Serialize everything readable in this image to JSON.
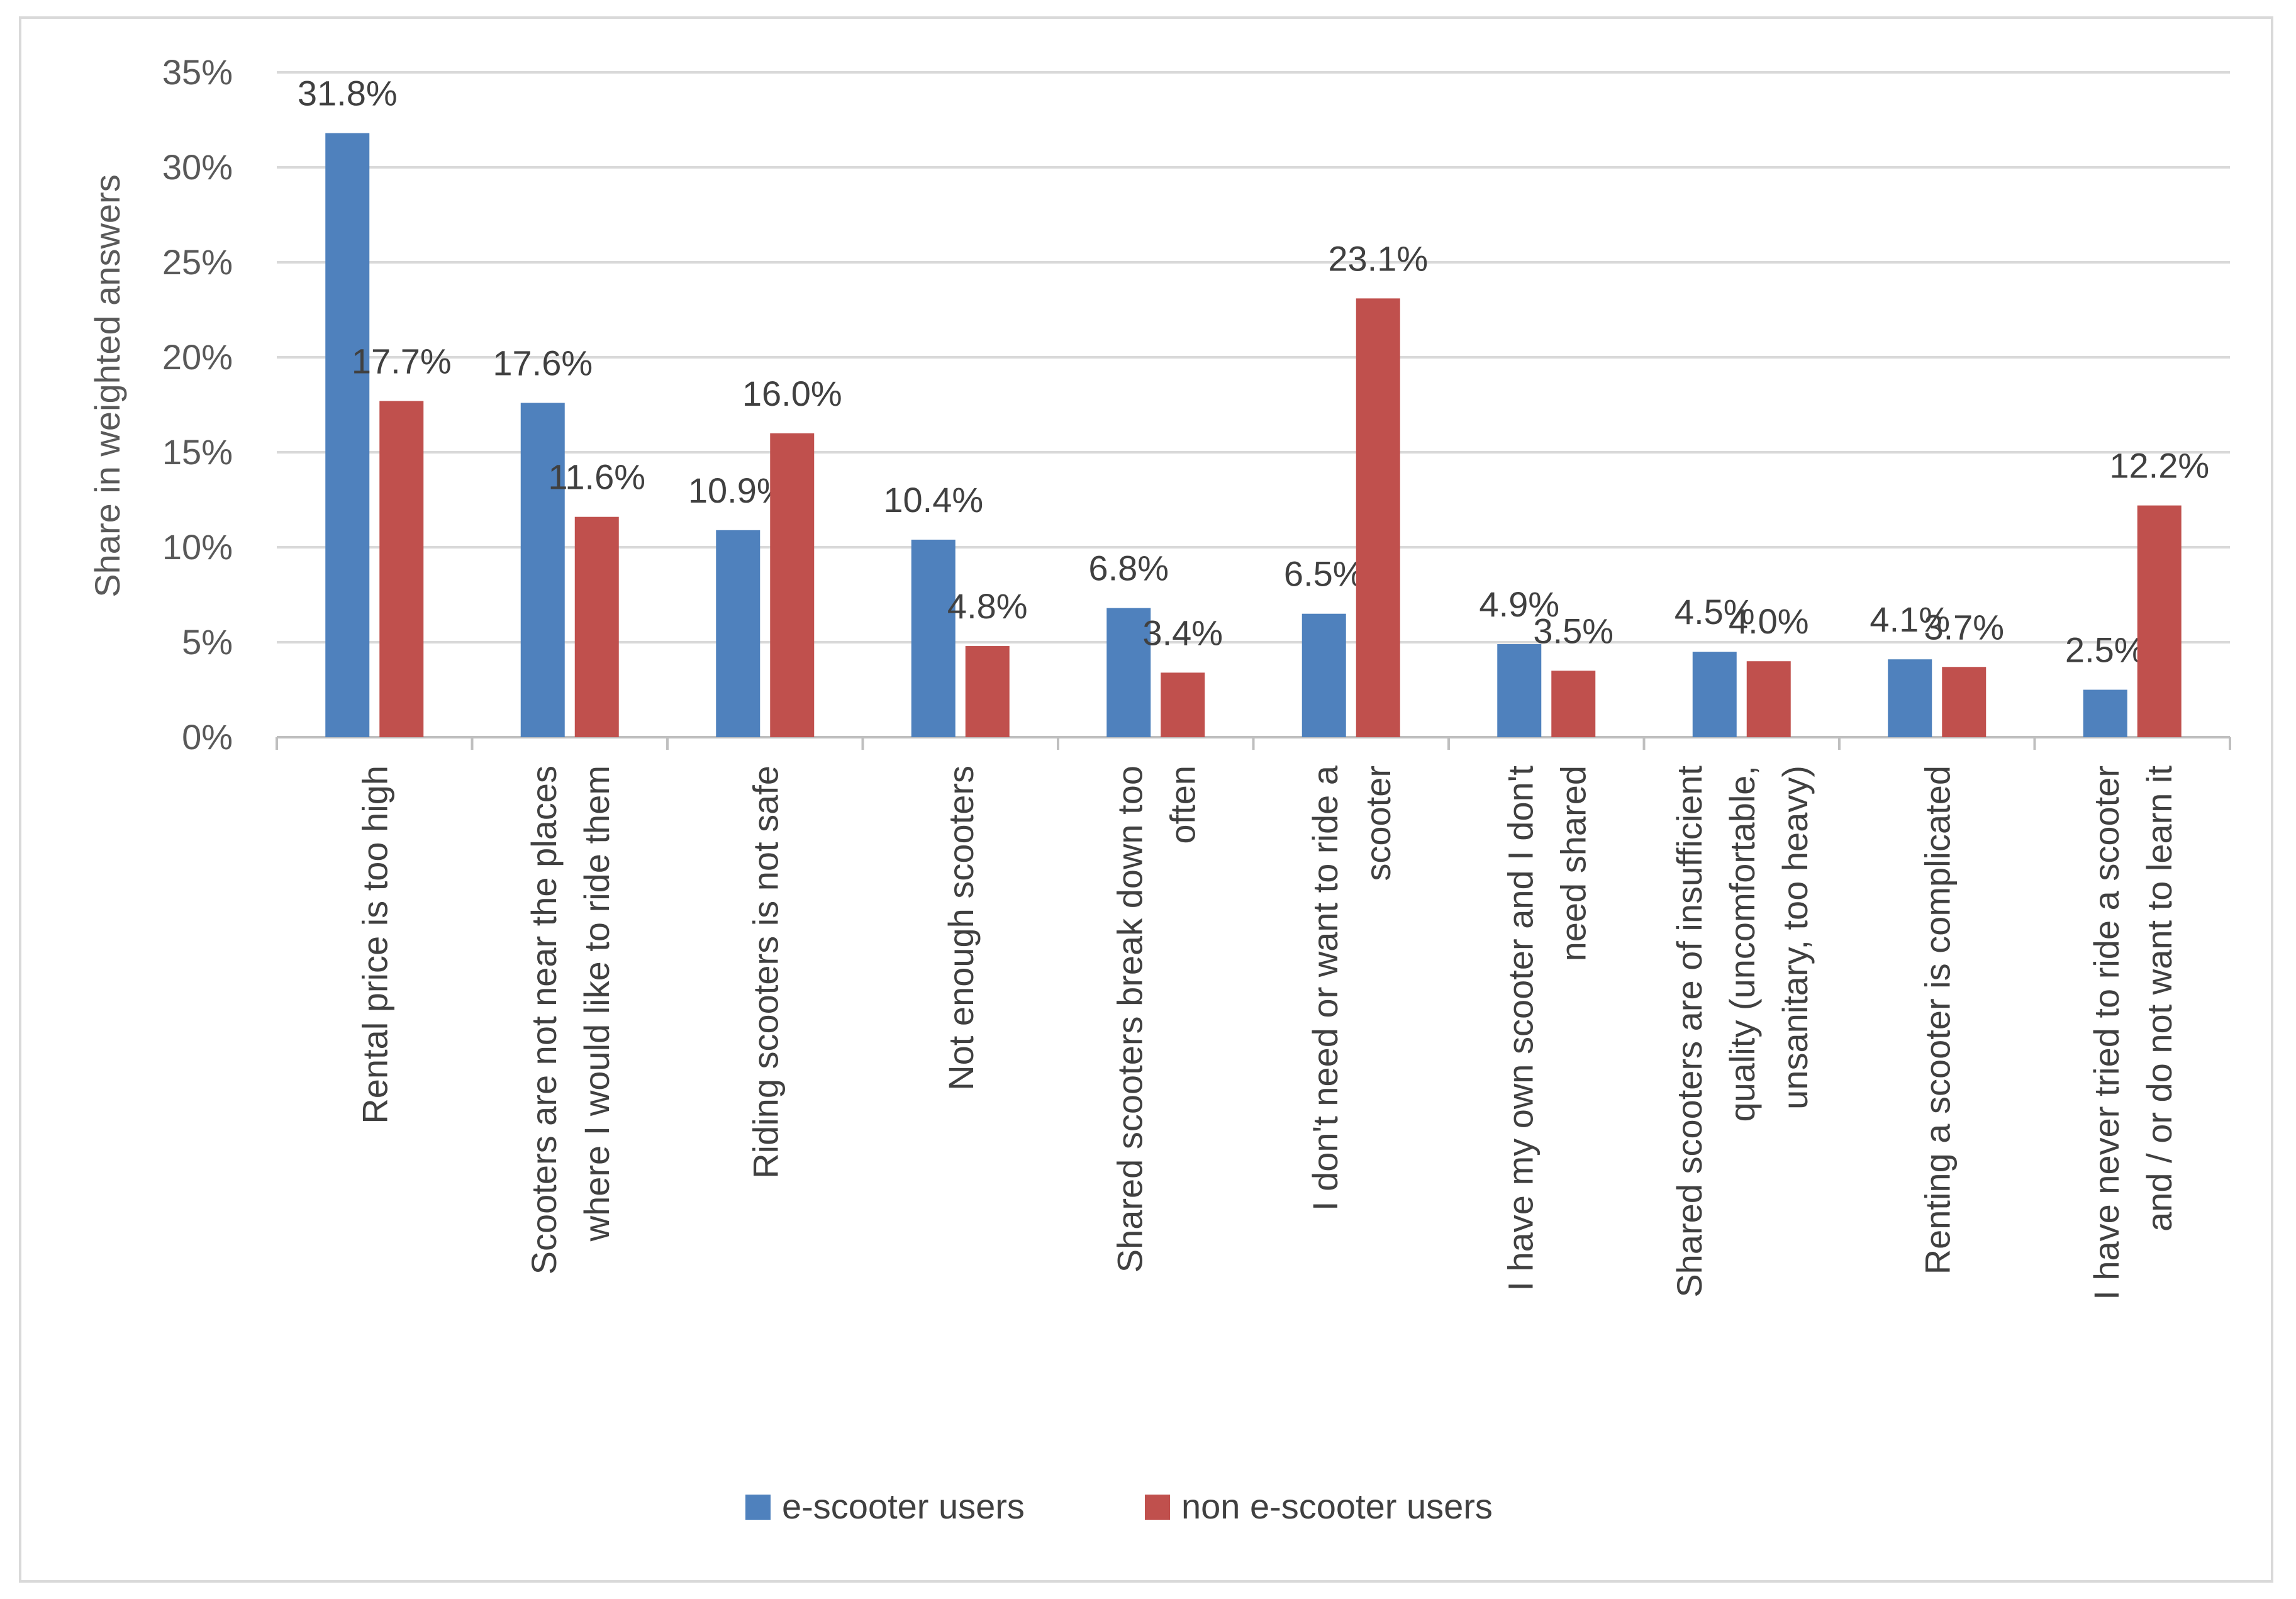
{
  "chart_data": {
    "type": "bar",
    "title": "",
    "xlabel": "",
    "ylabel": "Share in weighted answers",
    "ylim": [
      0,
      35
    ],
    "y_ticks": [
      0,
      5,
      10,
      15,
      20,
      25,
      30,
      35
    ],
    "y_tick_labels": [
      "0%",
      "5%",
      "10%",
      "15%",
      "20%",
      "25%",
      "30%",
      "35%"
    ],
    "grid": true,
    "legend_position": "bottom",
    "categories": [
      [
        "Rental price is too high"
      ],
      [
        "Scooters are not near the places",
        "where I would like to ride them"
      ],
      [
        "Riding scooters is not safe"
      ],
      [
        "Not enough scooters"
      ],
      [
        "Shared scooters break down too",
        "often"
      ],
      [
        "I don't need or want to ride a",
        "scooter"
      ],
      [
        "I have my own scooter and I don't",
        "need shared"
      ],
      [
        "Shared scooters are of insufficient",
        "quality (uncomfortable,",
        "unsanitary, too heavy)"
      ],
      [
        "Renting a scooter is complicated"
      ],
      [
        "I have never tried to ride a scooter",
        "and / or do not want to learn it"
      ]
    ],
    "series": [
      {
        "name": "e-scooter users",
        "color": "#4f81bd",
        "values": [
          31.8,
          17.6,
          10.9,
          10.4,
          6.8,
          6.5,
          4.9,
          4.5,
          4.1,
          2.5
        ],
        "labels": [
          "31.8%",
          "17.6%",
          "10.9%",
          "10.4%",
          "6.8%",
          "6.5%",
          "4.9%",
          "4.5%",
          "4.1%",
          "2.5%"
        ]
      },
      {
        "name": "non e-scooter users",
        "color": "#c0504d",
        "values": [
          17.7,
          11.6,
          16.0,
          4.8,
          3.4,
          23.1,
          3.5,
          4.0,
          3.7,
          12.2
        ],
        "labels": [
          "17.7%",
          "11.6%",
          "16.0%",
          "4.8%",
          "3.4%",
          "23.1%",
          "3.5%",
          "4.0%",
          "3.7%",
          "12.2%"
        ]
      }
    ],
    "colors": {
      "gridline": "#d9d9d9",
      "axis": "#bfbfbf",
      "frame": "#d9d9d9"
    }
  }
}
